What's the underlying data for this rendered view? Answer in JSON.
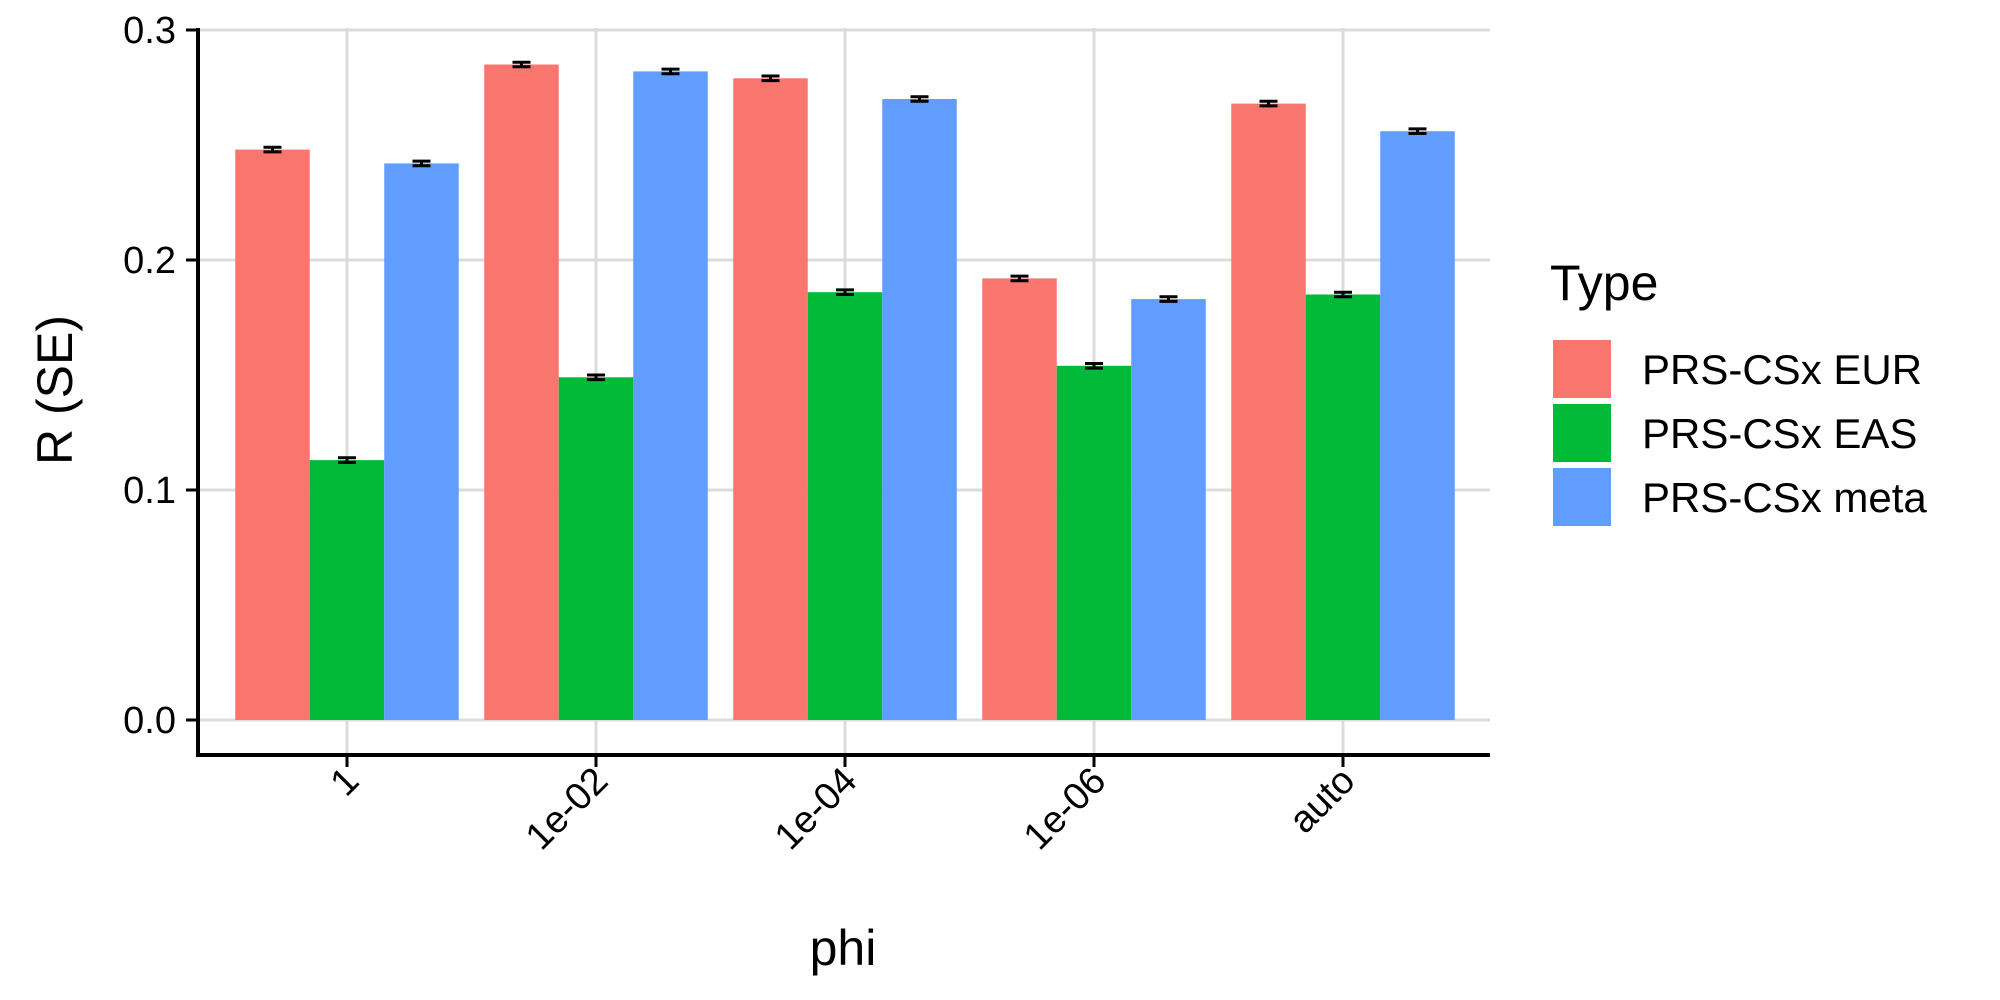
{
  "chart_data": {
    "type": "bar",
    "xlabel": "phi",
    "ylabel": "R (SE)",
    "ylim": [
      0,
      0.3
    ],
    "yticks": [
      0.0,
      0.1,
      0.2,
      0.3
    ],
    "ytick_labels": [
      "0.0",
      "0.1",
      "0.2",
      "0.3"
    ],
    "categories": [
      "1",
      "1e-02",
      "1e-04",
      "1e-06",
      "auto"
    ],
    "grid": true,
    "legend": {
      "title": "Type",
      "position": "right"
    },
    "error_bars": true,
    "series": [
      {
        "name": "PRS-CSx EUR",
        "color": "#F8766D",
        "values": [
          0.248,
          0.285,
          0.279,
          0.192,
          0.268
        ],
        "se": [
          0.001,
          0.001,
          0.001,
          0.001,
          0.001
        ]
      },
      {
        "name": "PRS-CSx EAS",
        "color": "#00BA38",
        "values": [
          0.113,
          0.149,
          0.186,
          0.154,
          0.185
        ],
        "se": [
          0.001,
          0.001,
          0.001,
          0.001,
          0.001
        ]
      },
      {
        "name": "PRS-CSx meta",
        "color": "#619CFF",
        "values": [
          0.242,
          0.282,
          0.27,
          0.183,
          0.256
        ],
        "se": [
          0.001,
          0.001,
          0.001,
          0.001,
          0.001
        ]
      }
    ]
  }
}
